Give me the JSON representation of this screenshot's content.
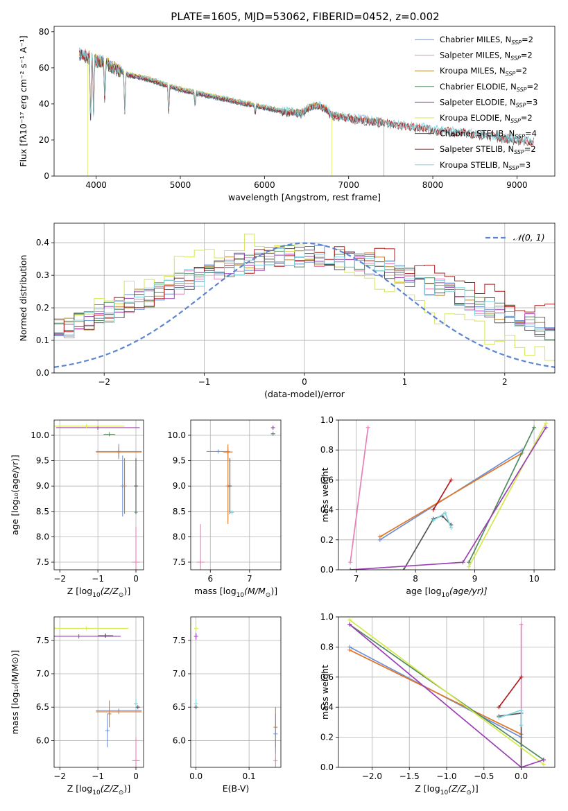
{
  "figure_title": "PLATE=1605, MJD=53062, FIBERID=0452, z=0.002",
  "colors": {
    "Chabrier MILES": "#6b8fd6",
    "Salpeter MILES": "#e87fb8",
    "Kroupa MILES": "#b8862e",
    "Chabrier ELODIE": "#4f8a5f",
    "Salpeter ELODIE": "#9b3fb5",
    "Kroupa ELODIE": "#d4e84a",
    "Chabrier STELIB": "#555555",
    "Salpeter STELIB": "#b01c1c",
    "Kroupa STELIB": "#7fd4e0",
    "gauss": "#5b84d3",
    "orange": "#e0762a"
  },
  "chart_data": [
    {
      "id": "spectrum",
      "type": "line",
      "title": "PLATE=1605, MJD=53062, FIBERID=0452, z=0.002",
      "xlabel": "wavelength [Angstrom, rest frame]",
      "ylabel": "Flux [f_λ 10^-17 erg cm^-2 s^-1 A^-1]",
      "xlim": [
        3500,
        9450
      ],
      "ylim": [
        0,
        83
      ],
      "xticks": [
        4000,
        5000,
        6000,
        7000,
        8000,
        9000
      ],
      "yticks": [
        0,
        20,
        40,
        60,
        80
      ],
      "grid": false,
      "legend_position": "right",
      "continuum": {
        "x": [
          3800,
          3900,
          4000,
          4100,
          4200,
          4400,
          4600,
          4800,
          5000,
          5200,
          5400,
          5600,
          5800,
          6000,
          6200,
          6400,
          6600,
          6800,
          7000,
          7200,
          7500,
          7800,
          8100,
          8400,
          8700,
          9000,
          9200
        ],
        "y": [
          68,
          66,
          64,
          63,
          60,
          56,
          54,
          51,
          48,
          46,
          44,
          42,
          40,
          38,
          36,
          35,
          34,
          34,
          32,
          31,
          29,
          27,
          25,
          24,
          22,
          20,
          19
        ]
      },
      "absorption_lines": [
        {
          "x": 3934,
          "depth": 0.55
        },
        {
          "x": 3969,
          "depth": 0.5
        },
        {
          "x": 4102,
          "depth": 0.35
        },
        {
          "x": 4340,
          "depth": 0.4
        },
        {
          "x": 4861,
          "depth": 0.3
        },
        {
          "x": 5175,
          "depth": 0.15
        },
        {
          "x": 5890,
          "depth": 0.12
        }
      ],
      "emission_bump": {
        "x": [
          6450,
          6800
        ],
        "peak": 39
      },
      "dropouts": [
        {
          "series": "Kroupa ELODIE",
          "x": 3900
        },
        {
          "series": "Kroupa ELODIE",
          "x": 6800
        },
        {
          "series": "Kroupa MILES",
          "x": 7420
        }
      ],
      "series": [
        {
          "name": "Chabrier MILES, N_SSP=2",
          "label_main": "Chabrier MILES, N",
          "label_sub": "SSP",
          "label_tail": "=2",
          "color": "#6b8fd6",
          "range": [
            3800,
            7420
          ]
        },
        {
          "name": "Salpeter MILES, N_SSP=2",
          "label_main": "Salpeter MILES, N",
          "label_sub": "SSP",
          "label_tail": "=2",
          "color": "#e87fb8",
          "range": [
            3800,
            7420
          ]
        },
        {
          "name": "Kroupa MILES, N_SSP=2",
          "label_main": "Kroupa MILES, N",
          "label_sub": "SSP",
          "label_tail": "=2",
          "color": "#b8862e",
          "range": [
            3800,
            7420
          ]
        },
        {
          "name": "Chabrier ELODIE, N_SSP=2",
          "label_main": "Chabrier ELODIE, N",
          "label_sub": "SSP",
          "label_tail": "=2",
          "color": "#4f8a5f",
          "range": [
            3900,
            6800
          ]
        },
        {
          "name": "Salpeter ELODIE, N_SSP=3",
          "label_main": "Salpeter ELODIE, N",
          "label_sub": "SSP",
          "label_tail": "=3",
          "color": "#9b3fb5",
          "range": [
            3900,
            6800
          ]
        },
        {
          "name": "Kroupa ELODIE, N_SSP=2",
          "label_main": "Kroupa ELODIE, N",
          "label_sub": "SSP",
          "label_tail": "=2",
          "color": "#d4e84a",
          "range": [
            3900,
            6800
          ]
        },
        {
          "name": "Chabrier STELIB, N_SSP=4",
          "label_main": "Chabrier STELIB, N",
          "label_sub": "SSP",
          "label_tail": "=4",
          "color": "#555555",
          "range": [
            3800,
            9200
          ]
        },
        {
          "name": "Salpeter STELIB, N_SSP=2",
          "label_main": "Salpeter STELIB, N",
          "label_sub": "SSP",
          "label_tail": "=2",
          "color": "#b01c1c",
          "range": [
            3800,
            9200
          ]
        },
        {
          "name": "Kroupa STELIB, N_SSP=3",
          "label_main": "Kroupa STELIB, N",
          "label_sub": "SSP",
          "label_tail": "=3",
          "color": "#7fd4e0",
          "range": [
            3800,
            9200
          ]
        }
      ]
    },
    {
      "id": "residuals",
      "type": "line",
      "xlabel": "(data-model)/error",
      "ylabel": "Normed distribution",
      "xlim": [
        -2.5,
        2.5
      ],
      "ylim": [
        0,
        0.46
      ],
      "xticks": [
        -2,
        -1,
        0,
        1,
        2
      ],
      "yticks": [
        0.0,
        0.1,
        0.2,
        0.3,
        0.4
      ],
      "grid": true,
      "legend_position": "top-right",
      "legend_label": "𝒩(0, 1)",
      "gaussian": {
        "mu": 0,
        "sigma": 1
      },
      "histogram_bins": {
        "start": -2.5,
        "width": 0.1,
        "count": 50
      }
    },
    {
      "id": "age_vs_Z",
      "type": "scatter",
      "xlabel": "Z [log10(Z/Z⊙)]",
      "xlabel_parts": [
        "Z [log",
        "10",
        "(Z/Z",
        "⊙",
        ")]"
      ],
      "ylabel": "age [log10(age/yr)]",
      "xlim": [
        -2.15,
        0.2
      ],
      "ylim": [
        7.35,
        10.3
      ],
      "xticks": [
        -2,
        -1,
        0
      ],
      "yticks": [
        7.5,
        8.0,
        8.5,
        9.0,
        9.5,
        10.0
      ],
      "grid": true
    },
    {
      "id": "age_vs_mass",
      "type": "scatter",
      "xlabel": "mass [log10(M/M⊙)]",
      "xlabel_parts": [
        "mass [log",
        "10",
        "(M/M",
        "⊙",
        ")]"
      ],
      "xlim": [
        5.5,
        7.8
      ],
      "ylim": [
        7.35,
        10.3
      ],
      "xticks": [
        6,
        7
      ],
      "yticks": [
        7.5,
        8.0,
        8.5,
        9.0,
        9.5,
        10.0
      ],
      "grid": true
    },
    {
      "id": "massweight_vs_age",
      "type": "line",
      "xlabel": "age [log10(age/yr)]",
      "xlabel_parts": [
        "age  [log",
        "10",
        "(age/yr)]"
      ],
      "ylabel": "mass weight",
      "xlim": [
        6.7,
        10.35
      ],
      "ylim": [
        0,
        1
      ],
      "xticks": [
        7,
        8,
        9,
        10
      ],
      "yticks": [
        0.0,
        0.2,
        0.4,
        0.6,
        0.8,
        1.0
      ],
      "grid": true,
      "series": [
        {
          "color": "#e87fb8",
          "x": [
            6.9,
            7.2
          ],
          "y": [
            0.05,
            0.95
          ]
        },
        {
          "color": "#6b8fd6",
          "x": [
            7.4,
            9.8
          ],
          "y": [
            0.2,
            0.8
          ]
        },
        {
          "color": "#e0762a",
          "x": [
            7.4,
            9.8
          ],
          "y": [
            0.22,
            0.78
          ]
        },
        {
          "color": "#b01c1c",
          "x": [
            8.3,
            8.6
          ],
          "y": [
            0.4,
            0.6
          ]
        },
        {
          "color": "#555555",
          "x": [
            7.8,
            8.3,
            8.45,
            8.6
          ],
          "y": [
            0.0,
            0.34,
            0.36,
            0.3
          ]
        },
        {
          "color": "#7fd4e0",
          "x": [
            8.3,
            8.5,
            8.6
          ],
          "y": [
            0.33,
            0.38,
            0.28
          ]
        },
        {
          "color": "#4f8a5f",
          "x": [
            8.9,
            10.0
          ],
          "y": [
            0.05,
            0.95
          ]
        },
        {
          "color": "#d4e84a",
          "x": [
            8.9,
            10.2
          ],
          "y": [
            0.02,
            0.98
          ]
        },
        {
          "color": "#9b3fb5",
          "x": [
            6.9,
            8.8,
            10.2
          ],
          "y": [
            0.0,
            0.05,
            0.95
          ]
        }
      ]
    },
    {
      "id": "mass_vs_Z",
      "type": "scatter",
      "xlabel": "Z [log10(Z/Z⊙)]",
      "xlabel_parts": [
        "Z [log",
        "10",
        "(Z/Z",
        "⊙",
        ")]"
      ],
      "ylabel": "mass [log10(M/M⊙)]",
      "xlim": [
        -2.15,
        0.2
      ],
      "ylim": [
        5.6,
        7.85
      ],
      "xticks": [
        -2,
        -1,
        0
      ],
      "yticks": [
        6.0,
        6.5,
        7.0,
        7.5
      ],
      "grid": true
    },
    {
      "id": "mass_vs_EBV",
      "type": "scatter",
      "xlabel": "E(B-V)",
      "xlim": [
        -0.01,
        0.16
      ],
      "ylim": [
        5.6,
        7.85
      ],
      "xticks": [
        0.0,
        0.1
      ],
      "yticks": [
        6.0,
        6.5,
        7.0,
        7.5
      ],
      "grid": true
    },
    {
      "id": "massweight_vs_Z",
      "type": "line",
      "xlabel": "Z [log10(Z/Z⊙)]",
      "xlabel_parts": [
        "Z [log",
        "10",
        "(Z/Z",
        "⊙",
        ")]"
      ],
      "ylabel": "mass weight",
      "xlim": [
        -2.45,
        0.45
      ],
      "ylim": [
        0,
        1
      ],
      "xticks": [
        -2.0,
        -1.5,
        -1.0,
        -0.5,
        0.0
      ],
      "yticks": [
        0.0,
        0.2,
        0.4,
        0.6,
        0.8,
        1.0
      ],
      "grid": true,
      "series": [
        {
          "color": "#e87fb8",
          "x": [
            0.0,
            0.0
          ],
          "y": [
            0.0,
            0.95
          ]
        },
        {
          "color": "#6b8fd6",
          "x": [
            -2.3,
            0.0
          ],
          "y": [
            0.8,
            0.2
          ]
        },
        {
          "color": "#e0762a",
          "x": [
            -2.3,
            0.0
          ],
          "y": [
            0.78,
            0.22
          ]
        },
        {
          "color": "#b01c1c",
          "x": [
            -0.3,
            0.0
          ],
          "y": [
            0.4,
            0.6
          ]
        },
        {
          "color": "#555555",
          "x": [
            -0.3,
            0.0,
            0.0
          ],
          "y": [
            0.34,
            0.36,
            0.0
          ]
        },
        {
          "color": "#7fd4e0",
          "x": [
            -0.3,
            0.0,
            0.0
          ],
          "y": [
            0.33,
            0.38,
            0.28
          ]
        },
        {
          "color": "#4f8a5f",
          "x": [
            -2.3,
            0.3
          ],
          "y": [
            0.95,
            0.05
          ]
        },
        {
          "color": "#d4e84a",
          "x": [
            -2.3,
            0.3
          ],
          "y": [
            0.98,
            0.02
          ]
        },
        {
          "color": "#9b3fb5",
          "x": [
            -2.3,
            0.0,
            0.3
          ],
          "y": [
            0.95,
            0.0,
            0.05
          ]
        }
      ]
    }
  ]
}
